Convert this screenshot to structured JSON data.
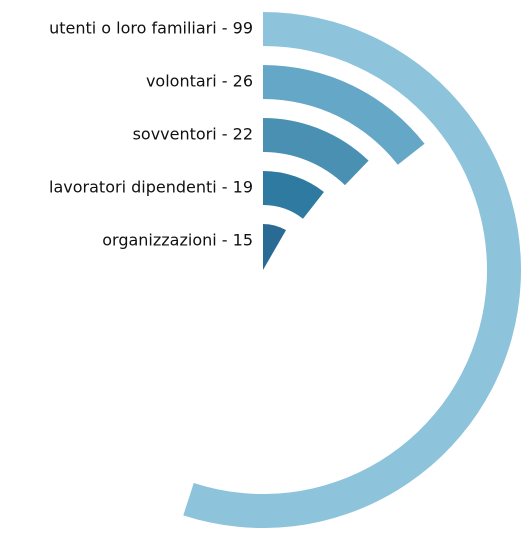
{
  "chart_data": {
    "type": "radial_bar",
    "categories": [
      "utenti o loro familiari - 99",
      "volontari - 26",
      "sovventori - 22",
      "lavoratori dipendenti - 19",
      "organizzazioni - 15"
    ],
    "values": [
      99,
      26,
      22,
      19,
      15
    ],
    "colors": [
      "#8ec3dc",
      "#64a7c7",
      "#4a90b3",
      "#2e7aa0",
      "#2a6b96"
    ],
    "xlim": [
      0,
      180
    ]
  }
}
